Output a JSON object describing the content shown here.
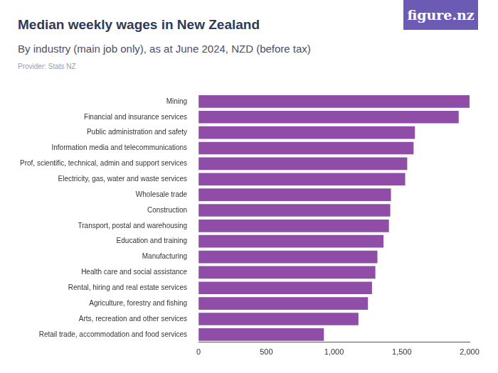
{
  "chart_data": {
    "type": "bar",
    "orientation": "horizontal",
    "title": "Median weekly wages in New Zealand",
    "subtitle": "By industry (main job only), as at June 2024, NZD (before tax)",
    "source": "Provider: Stats NZ",
    "logo": "figure.nz",
    "categories": [
      "Mining",
      "Financial and insurance services",
      "Public administration and safety",
      "Information media and telecommunications",
      "Prof, scientific, technical, admin and support services",
      "Electricity, gas, water and waste services",
      "Wholesale trade",
      "Construction",
      "Transport, postal and warehousing",
      "Education and training",
      "Manufacturing",
      "Health care and social assistance",
      "Rental, hiring and real estate services",
      "Agriculture, forestry and fishing",
      "Arts, recreation and other services",
      "Retail trade, accommodation and food services"
    ],
    "values": [
      2000,
      1920,
      1597,
      1587,
      1540,
      1525,
      1420,
      1415,
      1405,
      1365,
      1320,
      1305,
      1280,
      1250,
      1180,
      925
    ],
    "color": "#8f4da8",
    "xlim": [
      0,
      2000
    ],
    "xticks": [
      0,
      500,
      {
        "value": 1000,
        "label": "1,000"
      },
      {
        "value": 1500,
        "label": "1,500"
      },
      {
        "value": 2000,
        "label": "2,000"
      }
    ],
    "grid": false
  }
}
